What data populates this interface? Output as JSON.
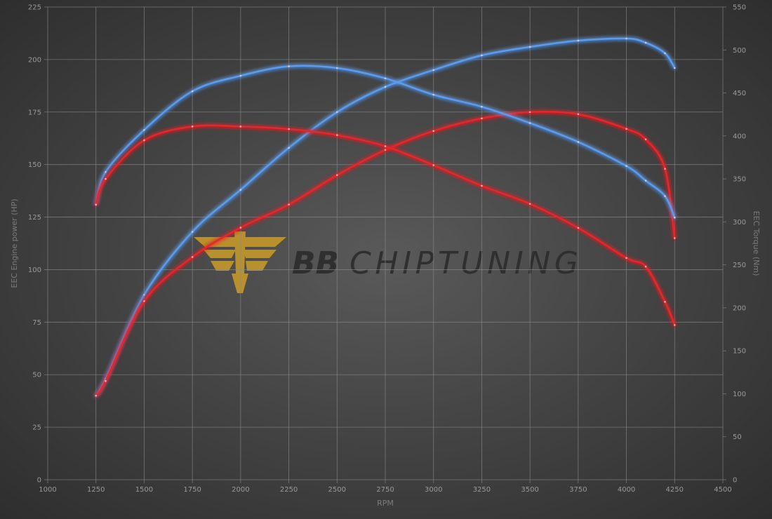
{
  "chart_data": {
    "type": "line",
    "xlabel": "RPM",
    "ylabel_left": "EEC Engine power (HP)",
    "ylabel_right": "EEC Torque (Nm)",
    "xlim": [
      1000,
      4500
    ],
    "ylim_left": [
      0,
      225
    ],
    "ylim_right": [
      0,
      550
    ],
    "x_ticks": [
      1000,
      1250,
      1500,
      1750,
      2000,
      2250,
      2500,
      2750,
      3000,
      3250,
      3500,
      3750,
      4000,
      4250,
      4500
    ],
    "y_ticks_left": [
      0,
      25,
      50,
      75,
      100,
      125,
      150,
      175,
      200,
      225
    ],
    "y_ticks_right": [
      0,
      50,
      100,
      150,
      200,
      250,
      300,
      350,
      400,
      450,
      500,
      550
    ],
    "grid": true,
    "x": [
      1250,
      1300,
      1500,
      1750,
      2000,
      2250,
      2500,
      2750,
      3000,
      3250,
      3500,
      3750,
      4000,
      4100,
      4200,
      4250
    ],
    "series": [
      {
        "axis": "left",
        "color": "#5a9cf0",
        "values": [
          40,
          48,
          88,
          118,
          138,
          158,
          175,
          187,
          195,
          202,
          206,
          209,
          210,
          208,
          203,
          196
        ]
      },
      {
        "axis": "left",
        "color": "#e8262a",
        "values": [
          40,
          47,
          85,
          106,
          120,
          131,
          145,
          157,
          166,
          172,
          175,
          174,
          167,
          162,
          148,
          115
        ]
      },
      {
        "axis": "right",
        "color": "#5a9cf0",
        "values": [
          321,
          358,
          407,
          452,
          470,
          481,
          479,
          467,
          448,
          434,
          415,
          393,
          365,
          348,
          330,
          305
        ]
      },
      {
        "axis": "right",
        "color": "#e8262a",
        "values": [
          320,
          350,
          395,
          411,
          411,
          408,
          401,
          388,
          366,
          342,
          321,
          293,
          258,
          248,
          207,
          180
        ]
      }
    ]
  },
  "watermark": {
    "logo_text": "BB",
    "brand_bold": "BB",
    "brand_rest": "CHIPTUNING",
    "logo_color": "#b8902e"
  }
}
